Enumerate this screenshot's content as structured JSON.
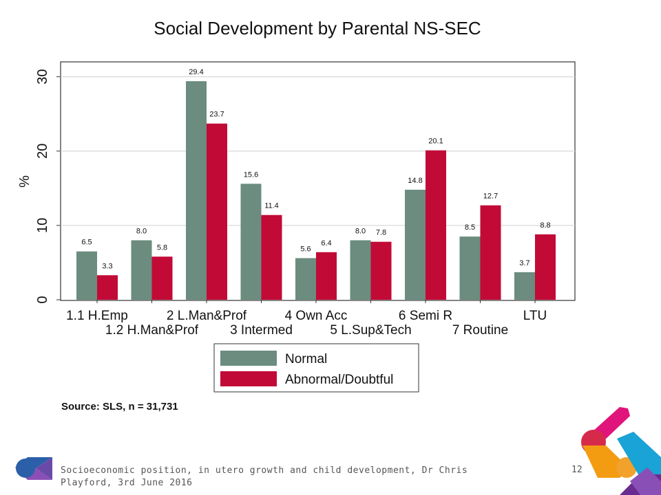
{
  "chart_data": {
    "type": "bar",
    "title": "Social Development by Parental NS-SEC",
    "ylabel": "%",
    "xlabel": "",
    "ylim": [
      0,
      32
    ],
    "yticks": [
      0,
      10,
      20,
      30
    ],
    "grid": true,
    "categories": [
      "1.1 H.Emp",
      "1.2 H.Man&Prof",
      "2 L.Man&Prof",
      "3 Intermed",
      "4 Own Acc",
      "5 L.Sup&Tech",
      "6 Semi R",
      "7 Routine",
      "LTU"
    ],
    "series": [
      {
        "name": "Normal",
        "color": "#6b8c7e",
        "values": [
          6.5,
          8.0,
          29.4,
          15.6,
          5.6,
          8.0,
          14.8,
          8.5,
          3.7
        ]
      },
      {
        "name": "Abnormal/Doubtful",
        "color": "#c20a37",
        "values": [
          3.3,
          5.8,
          23.7,
          11.4,
          6.4,
          7.8,
          20.1,
          12.7,
          8.8
        ]
      }
    ],
    "value_labels": [
      [
        "6.5",
        "8.0",
        "29.4",
        "15.6",
        "5.6",
        "8.0",
        "14.8",
        "8.5",
        "3.7"
      ],
      [
        "3.3",
        "5.8",
        "23.7",
        "11.4",
        "6.4",
        "7.8",
        "20.1",
        "12.7",
        "8.8"
      ]
    ],
    "legend_position": "bottom",
    "source_note": "Source: SLS, n = 31,731"
  },
  "footer": {
    "text": "Socioeconomic position, in utero growth and child development, Dr Chris Playford, 3rd June 2016",
    "page_number": "12"
  },
  "colors": {
    "logo_left": [
      "#2b5fa8",
      "#8a4fb6"
    ],
    "logo_right": [
      "#e0147a",
      "#f39c12",
      "#19a3d6",
      "#6a2c91",
      "#d62a4b"
    ]
  }
}
